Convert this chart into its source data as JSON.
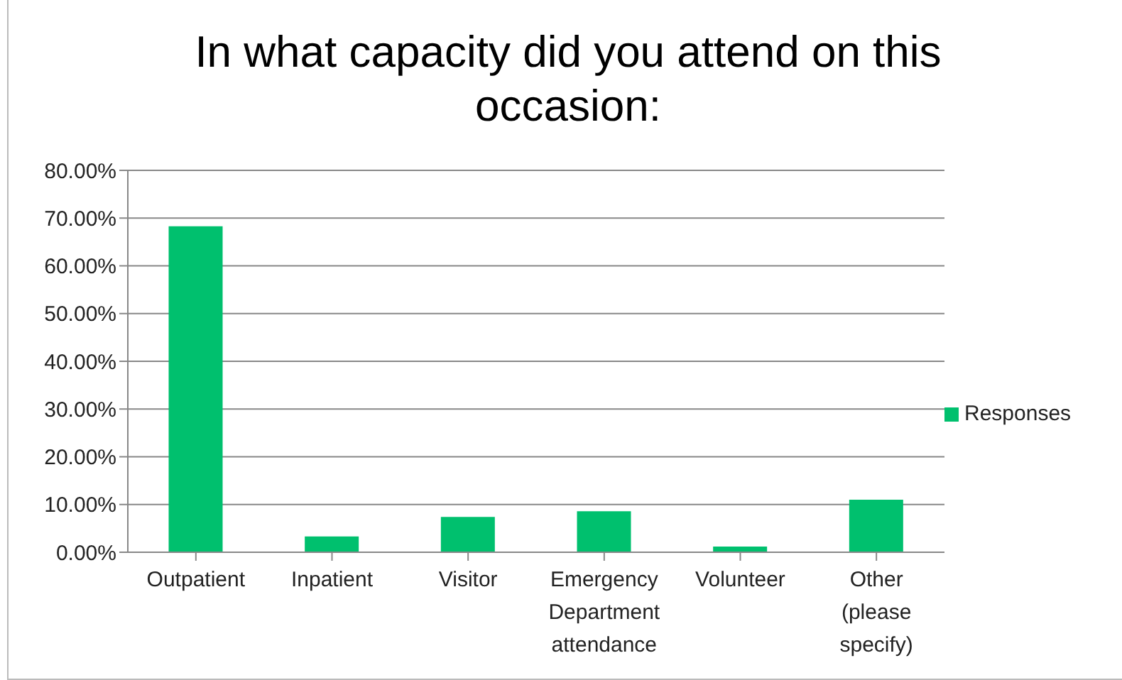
{
  "chart_data": {
    "type": "bar",
    "title": "In what capacity did you attend on this occasion:",
    "categories": [
      "Outpatient",
      "Inpatient",
      "Visitor",
      "Emergency Department attendance",
      "Volunteer",
      "Other (please specify)"
    ],
    "series": [
      {
        "name": "Responses",
        "color": "#00c06e",
        "values": [
          68.3,
          3.3,
          7.4,
          8.6,
          1.2,
          11.0
        ]
      }
    ],
    "ylim": [
      0,
      80
    ],
    "yticks": [
      {
        "value": 0,
        "label": "0.00%"
      },
      {
        "value": 10,
        "label": "10.00%"
      },
      {
        "value": 20,
        "label": "20.00%"
      },
      {
        "value": 30,
        "label": "30.00%"
      },
      {
        "value": 40,
        "label": "40.00%"
      },
      {
        "value": 50,
        "label": "50.00%"
      },
      {
        "value": 60,
        "label": "60.00%"
      },
      {
        "value": 70,
        "label": "70.00%"
      },
      {
        "value": 80,
        "label": "80.00%"
      }
    ],
    "grid": "y",
    "legend": "right"
  }
}
